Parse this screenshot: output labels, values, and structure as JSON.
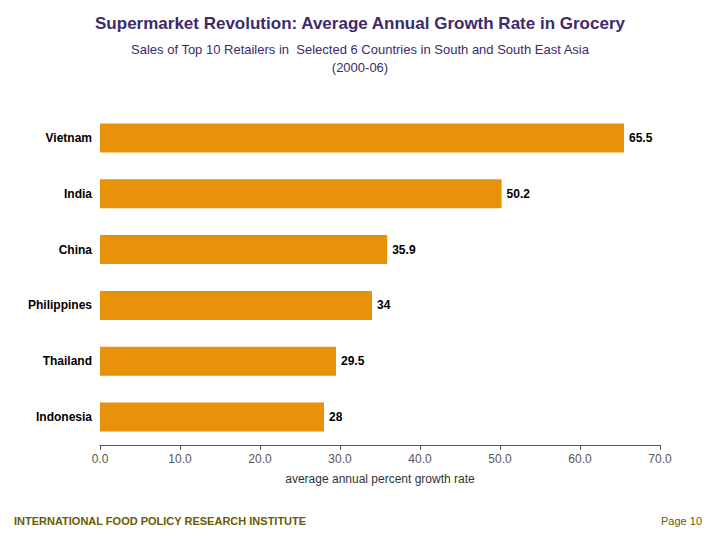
{
  "chart_data": {
    "type": "bar",
    "orientation": "horizontal",
    "title": "Supermarket Revolution: Average Annual Growth Rate in Grocery",
    "subtitle": "Sales of Top 10 Retailers in  Selected 6 Countries in South and South East Asia\n(2000-06)",
    "categories": [
      "Vietnam",
      "India",
      "China",
      "Philippines",
      "Thailand",
      "Indonesia"
    ],
    "values": [
      65.5,
      50.2,
      35.9,
      34.0,
      29.5,
      28.0
    ],
    "color": "#E8920A",
    "xlabel": "average annual percent growth rate",
    "xlim": [
      0,
      70
    ],
    "xticks": [
      {
        "value": 0,
        "label": "0.0"
      },
      {
        "value": 10,
        "label": "10.0"
      },
      {
        "value": 20,
        "label": "20.0"
      },
      {
        "value": 30,
        "label": "30.0"
      },
      {
        "value": 40,
        "label": "40.0"
      },
      {
        "value": 50,
        "label": "50.0"
      },
      {
        "value": 60,
        "label": "60.0"
      },
      {
        "value": 70,
        "label": "70.0"
      }
    ],
    "grid": false,
    "data_labels": true,
    "annotations": [
      "INTERNATIONAL FOOD POLICY RESEARCH INSTITUTE",
      "Page 10"
    ]
  }
}
